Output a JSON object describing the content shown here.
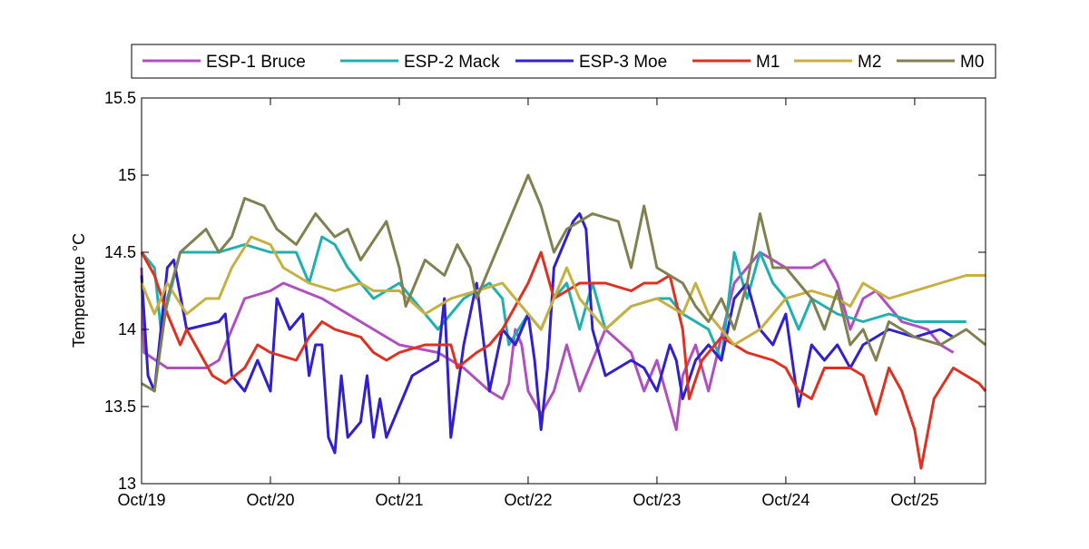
{
  "chart_data": {
    "type": "line",
    "title": "",
    "xlabel": "",
    "ylabel": "Temperature °C",
    "xlim_days_from_oct19": [
      0,
      6.55
    ],
    "ylim": [
      13,
      15.5
    ],
    "yticks": [
      13,
      13.5,
      14,
      14.5,
      15,
      15.5
    ],
    "ytick_labels": [
      "13",
      "13.5",
      "14",
      "14.5",
      "15",
      "15.5"
    ],
    "xticks": [
      0,
      1,
      2,
      3,
      4,
      5,
      6
    ],
    "xtick_labels": [
      "Oct/19",
      "Oct/20",
      "Oct/21",
      "Oct/22",
      "Oct/23",
      "Oct/24",
      "Oct/25"
    ],
    "grid": false,
    "legend_position": "top-outside",
    "series": [
      {
        "name": "ESP-1 Bruce",
        "color": "#b050c0",
        "x": [
          0,
          0.02,
          0.2,
          0.5,
          0.6,
          0.8,
          1.0,
          1.1,
          1.4,
          1.6,
          1.8,
          2.0,
          2.3,
          2.5,
          2.7,
          2.8,
          2.85,
          2.9,
          2.95,
          3.0,
          3.1,
          3.2,
          3.3,
          3.4,
          3.6,
          3.8,
          3.9,
          4.0,
          4.1,
          4.15,
          4.2,
          4.3,
          4.4,
          4.6,
          4.7,
          4.8,
          5.0,
          5.2,
          5.3,
          5.4,
          5.5,
          5.6,
          5.7,
          5.9,
          6.1,
          6.2,
          6.3
        ],
        "y": [
          14.4,
          13.85,
          13.75,
          13.75,
          13.8,
          14.2,
          14.25,
          14.3,
          14.2,
          14.1,
          14.0,
          13.9,
          13.85,
          13.75,
          13.6,
          13.55,
          13.65,
          14.0,
          13.9,
          13.6,
          13.45,
          13.6,
          13.9,
          13.6,
          14.0,
          13.85,
          13.6,
          13.8,
          13.5,
          13.35,
          13.7,
          13.9,
          13.6,
          14.3,
          14.4,
          14.5,
          14.4,
          14.4,
          14.45,
          14.3,
          14.0,
          14.2,
          14.25,
          14.05,
          14.0,
          13.9,
          13.85
        ]
      },
      {
        "name": "ESP-2 Mack",
        "color": "#20b0b0",
        "x": [
          0,
          0.1,
          0.15,
          0.3,
          0.6,
          0.8,
          1.0,
          1.2,
          1.3,
          1.4,
          1.5,
          1.6,
          1.7,
          1.8,
          2.0,
          2.2,
          2.3,
          2.5,
          2.6,
          2.7,
          2.8,
          2.85,
          3.0,
          3.1,
          3.2,
          3.3,
          3.4,
          3.5,
          3.6,
          3.8,
          4.0,
          4.1,
          4.2,
          4.4,
          4.5,
          4.6,
          4.7,
          4.8,
          4.9,
          5.0,
          5.1,
          5.2,
          5.4,
          5.6,
          5.8,
          6.0,
          6.3,
          6.4
        ],
        "y": [
          14.5,
          14.4,
          14.0,
          14.5,
          14.5,
          14.55,
          14.5,
          14.5,
          14.3,
          14.6,
          14.55,
          14.4,
          14.3,
          14.2,
          14.3,
          14.1,
          14.0,
          14.2,
          14.25,
          14.3,
          14.2,
          13.9,
          14.1,
          14.0,
          14.2,
          14.3,
          14.0,
          14.3,
          14.0,
          14.15,
          14.2,
          14.2,
          14.1,
          14.0,
          13.8,
          14.5,
          14.2,
          14.5,
          14.3,
          14.2,
          14.0,
          14.2,
          14.1,
          14.05,
          14.1,
          14.05,
          14.05,
          14.05
        ]
      },
      {
        "name": "ESP-3 Moe",
        "color": "#3020d0",
        "x": [
          0,
          0.05,
          0.1,
          0.2,
          0.25,
          0.35,
          0.6,
          0.65,
          0.7,
          0.8,
          0.9,
          1.0,
          1.05,
          1.15,
          1.25,
          1.3,
          1.35,
          1.4,
          1.45,
          1.5,
          1.55,
          1.6,
          1.7,
          1.75,
          1.8,
          1.85,
          1.9,
          2.0,
          2.1,
          2.3,
          2.35,
          2.4,
          2.5,
          2.6,
          2.7,
          2.8,
          2.9,
          3.0,
          3.05,
          3.1,
          3.15,
          3.2,
          3.25,
          3.35,
          3.4,
          3.45,
          3.5,
          3.6,
          3.7,
          3.8,
          3.9,
          4.0,
          4.1,
          4.15,
          4.2,
          4.3,
          4.4,
          4.5,
          4.6,
          4.7,
          4.8,
          4.9,
          5.0,
          5.1,
          5.2,
          5.3,
          5.4,
          5.5,
          5.6,
          5.8,
          6.0,
          6.2,
          6.3
        ],
        "y": [
          14.35,
          13.7,
          13.6,
          14.4,
          14.45,
          14.0,
          14.05,
          14.1,
          13.7,
          13.6,
          13.8,
          13.6,
          14.2,
          14.0,
          14.1,
          13.7,
          13.9,
          13.9,
          13.3,
          13.2,
          13.7,
          13.3,
          13.4,
          13.7,
          13.3,
          13.55,
          13.3,
          13.5,
          13.7,
          13.8,
          14.2,
          13.3,
          13.9,
          14.3,
          13.6,
          14.0,
          13.9,
          14.1,
          13.8,
          13.35,
          13.75,
          14.4,
          14.5,
          14.7,
          14.75,
          14.65,
          14.0,
          13.7,
          13.75,
          13.8,
          13.75,
          13.6,
          13.9,
          13.8,
          13.55,
          13.8,
          13.9,
          13.8,
          14.2,
          14.3,
          14.0,
          13.9,
          14.1,
          13.5,
          13.9,
          13.8,
          13.9,
          13.75,
          13.9,
          14.0,
          13.95,
          14.0,
          13.95
        ]
      },
      {
        "name": "M1",
        "color": "#e03020",
        "x": [
          0,
          0.1,
          0.2,
          0.3,
          0.35,
          0.45,
          0.55,
          0.65,
          0.8,
          0.9,
          1.0,
          1.2,
          1.3,
          1.4,
          1.5,
          1.7,
          1.8,
          1.9,
          2.0,
          2.2,
          2.4,
          2.45,
          2.6,
          2.7,
          2.8,
          2.9,
          3.0,
          3.1,
          3.2,
          3.4,
          3.6,
          3.8,
          3.9,
          4.0,
          4.1,
          4.2,
          4.25,
          4.35,
          4.4,
          4.5,
          4.6,
          4.7,
          4.9,
          5.0,
          5.1,
          5.2,
          5.3,
          5.5,
          5.6,
          5.7,
          5.8,
          5.9,
          6.0,
          6.05,
          6.15,
          6.3,
          6.4,
          6.5,
          6.55
        ],
        "y": [
          14.5,
          14.35,
          14.1,
          13.9,
          14.0,
          13.85,
          13.7,
          13.65,
          13.75,
          13.9,
          13.85,
          13.8,
          13.95,
          14.05,
          14.0,
          13.95,
          13.85,
          13.8,
          13.85,
          13.9,
          13.9,
          13.75,
          13.85,
          13.9,
          14.0,
          14.15,
          14.3,
          14.5,
          14.2,
          14.3,
          14.3,
          14.25,
          14.3,
          14.3,
          14.35,
          14.0,
          13.55,
          13.8,
          13.85,
          13.95,
          13.9,
          13.85,
          13.8,
          13.75,
          13.6,
          13.55,
          13.75,
          13.75,
          13.7,
          13.45,
          13.75,
          13.6,
          13.35,
          13.1,
          13.55,
          13.75,
          13.7,
          13.65,
          13.6
        ]
      },
      {
        "name": "M2",
        "color": "#c8b040",
        "x": [
          0,
          0.1,
          0.2,
          0.35,
          0.5,
          0.6,
          0.7,
          0.85,
          1.0,
          1.1,
          1.3,
          1.5,
          1.7,
          1.8,
          2.0,
          2.2,
          2.4,
          2.6,
          2.8,
          2.9,
          3.0,
          3.1,
          3.2,
          3.3,
          3.4,
          3.6,
          3.8,
          4.0,
          4.2,
          4.3,
          4.4,
          4.6,
          4.8,
          5.0,
          5.2,
          5.4,
          5.5,
          5.6,
          5.8,
          6.0,
          6.2,
          6.4,
          6.55
        ],
        "y": [
          14.3,
          14.1,
          14.3,
          14.1,
          14.2,
          14.2,
          14.4,
          14.6,
          14.55,
          14.4,
          14.3,
          14.25,
          14.3,
          14.25,
          14.25,
          14.1,
          14.2,
          14.25,
          14.3,
          14.2,
          14.1,
          14.0,
          14.2,
          14.4,
          14.2,
          14.0,
          14.15,
          14.2,
          14.1,
          14.3,
          14.1,
          13.9,
          14.0,
          14.2,
          14.25,
          14.2,
          14.15,
          14.3,
          14.2,
          14.25,
          14.3,
          14.35,
          14.35
        ]
      },
      {
        "name": "M0",
        "color": "#808050",
        "x": [
          0,
          0.1,
          0.2,
          0.3,
          0.5,
          0.6,
          0.7,
          0.8,
          0.95,
          1.05,
          1.2,
          1.35,
          1.5,
          1.6,
          1.7,
          1.9,
          2.0,
          2.05,
          2.2,
          2.35,
          2.45,
          2.55,
          2.6,
          2.7,
          2.8,
          2.9,
          3.0,
          3.1,
          3.2,
          3.3,
          3.5,
          3.7,
          3.8,
          3.9,
          4.0,
          4.2,
          4.3,
          4.4,
          4.5,
          4.6,
          4.7,
          4.8,
          4.9,
          5.0,
          5.2,
          5.3,
          5.4,
          5.5,
          5.6,
          5.7,
          5.8,
          6.0,
          6.2,
          6.4,
          6.55
        ],
        "y": [
          13.65,
          13.6,
          14.2,
          14.5,
          14.65,
          14.5,
          14.6,
          14.85,
          14.8,
          14.65,
          14.55,
          14.75,
          14.6,
          14.65,
          14.45,
          14.7,
          14.4,
          14.15,
          14.45,
          14.35,
          14.55,
          14.4,
          14.2,
          14.4,
          14.6,
          14.8,
          15.0,
          14.8,
          14.5,
          14.65,
          14.75,
          14.7,
          14.4,
          14.8,
          14.4,
          14.3,
          14.15,
          14.05,
          14.2,
          14.0,
          14.3,
          14.75,
          14.4,
          14.4,
          14.2,
          14.0,
          14.25,
          13.9,
          14.0,
          13.8,
          14.05,
          13.95,
          13.9,
          14.0,
          13.9
        ]
      }
    ]
  }
}
